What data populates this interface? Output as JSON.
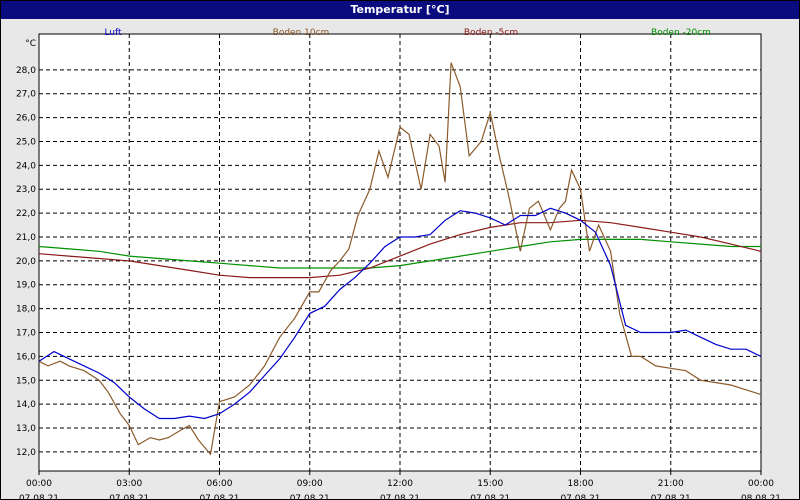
{
  "window": {
    "title": "Temperatur [°C]"
  },
  "chart_data": {
    "type": "line",
    "ylabel": "°C",
    "ylim": [
      11.2,
      29.5
    ],
    "yticks": [
      "12,0",
      "13,0",
      "14,0",
      "15,0",
      "16,0",
      "17,0",
      "18,0",
      "19,0",
      "20,0",
      "21,0",
      "22,0",
      "23,0",
      "24,0",
      "25,0",
      "26,0",
      "27,0",
      "28,0"
    ],
    "xlim": [
      0,
      24
    ],
    "xticks": [
      {
        "time": "00:00",
        "date": "07.08.21"
      },
      {
        "time": "03:00",
        "date": "07.08.21"
      },
      {
        "time": "06:00",
        "date": "07.08.21"
      },
      {
        "time": "09:00",
        "date": "07.08.21"
      },
      {
        "time": "12:00",
        "date": "07.08.21"
      },
      {
        "time": "15:00",
        "date": "07.08.21"
      },
      {
        "time": "18:00",
        "date": "07.08.21"
      },
      {
        "time": "21:00",
        "date": "07.08.21"
      },
      {
        "time": "00:00",
        "date": "08.08.21"
      }
    ],
    "grid": true,
    "legend_position": "top",
    "series": [
      {
        "name": "Luft",
        "color": "#0000cc",
        "x": [
          0,
          0.5,
          1,
          1.5,
          2,
          2.5,
          3,
          3.5,
          4,
          4.5,
          5,
          5.5,
          6,
          6.5,
          7,
          7.5,
          8,
          8.5,
          9,
          9.5,
          10,
          10.5,
          11,
          11.5,
          12,
          12.5,
          13,
          13.5,
          14,
          14.5,
          15,
          15.5,
          16,
          16.5,
          17,
          17.5,
          18,
          18.5,
          19,
          19.5,
          20,
          20.5,
          21,
          21.5,
          22,
          22.5,
          23,
          23.5,
          24
        ],
        "y": [
          15.8,
          16.2,
          15.9,
          15.6,
          15.3,
          14.9,
          14.3,
          13.8,
          13.4,
          13.4,
          13.5,
          13.4,
          13.6,
          14.0,
          14.5,
          15.2,
          15.9,
          16.8,
          17.8,
          18.1,
          18.8,
          19.3,
          19.9,
          20.6,
          21.0,
          21.0,
          21.1,
          21.7,
          22.1,
          22.0,
          21.8,
          21.5,
          21.9,
          21.9,
          22.2,
          22.0,
          21.7,
          21.2,
          19.8,
          17.3,
          17.0,
          17.0,
          17.0,
          17.1,
          16.8,
          16.5,
          16.3,
          16.3,
          16.0
        ]
      },
      {
        "name": "Boden 10cm",
        "color": "#8b5a2b",
        "x": [
          0,
          0.3,
          0.7,
          1,
          1.5,
          2,
          2.3,
          2.7,
          3,
          3.3,
          3.7,
          4,
          4.3,
          4.7,
          5,
          5.3,
          5.7,
          6,
          6.5,
          7,
          7.5,
          8,
          8.5,
          9,
          9.3,
          9.7,
          10,
          10.3,
          10.6,
          11,
          11.3,
          11.6,
          12,
          12.3,
          12.7,
          13,
          13.3,
          13.5,
          13.7,
          14,
          14.3,
          14.7,
          15,
          15.3,
          15.6,
          16,
          16.3,
          16.6,
          17,
          17.3,
          17.5,
          17.7,
          18,
          18.3,
          18.6,
          19,
          19.3,
          19.7,
          20,
          20.5,
          21,
          21.5,
          22,
          22.5,
          23,
          23.5,
          24
        ],
        "y": [
          15.8,
          15.6,
          15.8,
          15.6,
          15.4,
          15.0,
          14.5,
          13.6,
          13.1,
          12.3,
          12.6,
          12.5,
          12.6,
          12.9,
          13.1,
          12.5,
          11.9,
          14.1,
          14.3,
          14.8,
          15.6,
          16.8,
          17.6,
          18.7,
          18.7,
          19.6,
          20.0,
          20.5,
          21.9,
          23.0,
          24.6,
          23.5,
          25.6,
          25.3,
          23.0,
          25.3,
          24.8,
          23.3,
          28.3,
          27.3,
          24.4,
          25.0,
          26.2,
          24.4,
          22.8,
          20.4,
          22.2,
          22.5,
          21.3,
          22.2,
          22.5,
          23.8,
          23.0,
          20.4,
          21.5,
          20.4,
          17.8,
          16.0,
          16.0,
          15.6,
          15.5,
          15.4,
          15.0,
          14.9,
          14.8,
          14.6,
          14.4
        ]
      },
      {
        "name": "Boden -5cm",
        "color": "#8b1a1a",
        "x": [
          0,
          1,
          2,
          3,
          4,
          5,
          6,
          7,
          8,
          9,
          10,
          11,
          12,
          13,
          14,
          15,
          16,
          17,
          18,
          19,
          20,
          21,
          22,
          23,
          24
        ],
        "y": [
          20.3,
          20.2,
          20.1,
          20.0,
          19.8,
          19.6,
          19.4,
          19.3,
          19.3,
          19.3,
          19.4,
          19.7,
          20.2,
          20.7,
          21.1,
          21.4,
          21.6,
          21.6,
          21.7,
          21.6,
          21.4,
          21.2,
          21.0,
          20.7,
          20.4
        ]
      },
      {
        "name": "Boden -20cm",
        "color": "#009000",
        "x": [
          0,
          1,
          2,
          3,
          4,
          5,
          6,
          7,
          8,
          9,
          10,
          11,
          12,
          13,
          14,
          15,
          16,
          17,
          18,
          19,
          20,
          21,
          22,
          23,
          24
        ],
        "y": [
          20.6,
          20.5,
          20.4,
          20.2,
          20.1,
          20.0,
          19.9,
          19.8,
          19.7,
          19.7,
          19.7,
          19.7,
          19.8,
          20.0,
          20.2,
          20.4,
          20.6,
          20.8,
          20.9,
          20.9,
          20.9,
          20.8,
          20.7,
          20.6,
          20.6
        ]
      }
    ]
  }
}
